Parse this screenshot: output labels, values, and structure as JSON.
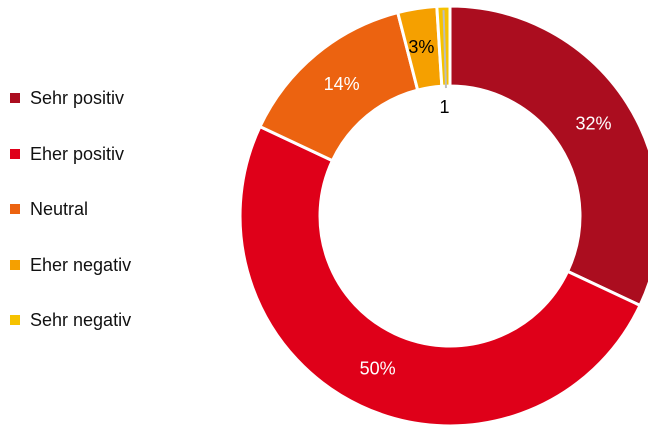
{
  "chart_data": {
    "type": "pie",
    "style": "donut",
    "categories": [
      "Sehr positiv",
      "Eher positiv",
      "Neutral",
      "Eher negativ",
      "Sehr negativ"
    ],
    "values": [
      32,
      50,
      14,
      3,
      1
    ],
    "labels": [
      "32%",
      "50%",
      "14%",
      "3%",
      "1"
    ],
    "colors": [
      "#ab0d1f",
      "#df0019",
      "#ec6310",
      "#f5a000",
      "#f6c200"
    ],
    "label_colors": [
      "#ffffff",
      "#ffffff",
      "#ffffff",
      "#000000",
      "#000000"
    ],
    "legend_position": "left"
  },
  "legend": {
    "items": [
      {
        "label": "Sehr positiv",
        "color": "#ab0d1f"
      },
      {
        "label": "Eher positiv",
        "color": "#df0019"
      },
      {
        "label": "Neutral",
        "color": "#ec6310"
      },
      {
        "label": "Eher negativ",
        "color": "#f5a000"
      },
      {
        "label": "Sehr negativ",
        "color": "#f6c200"
      }
    ]
  }
}
